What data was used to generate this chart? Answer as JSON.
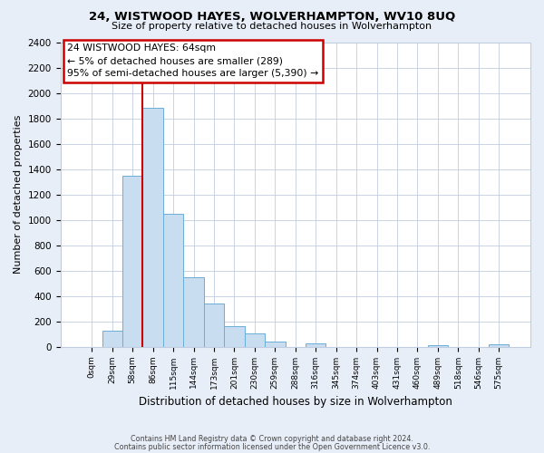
{
  "title": "24, WISTWOOD HAYES, WOLVERHAMPTON, WV10 8UQ",
  "subtitle": "Size of property relative to detached houses in Wolverhampton",
  "xlabel": "Distribution of detached houses by size in Wolverhampton",
  "ylabel": "Number of detached properties",
  "bin_labels": [
    "0sqm",
    "29sqm",
    "58sqm",
    "86sqm",
    "115sqm",
    "144sqm",
    "173sqm",
    "201sqm",
    "230sqm",
    "259sqm",
    "288sqm",
    "316sqm",
    "345sqm",
    "374sqm",
    "403sqm",
    "431sqm",
    "460sqm",
    "489sqm",
    "518sqm",
    "546sqm",
    "575sqm"
  ],
  "bar_values": [
    0,
    125,
    1350,
    1880,
    1050,
    550,
    340,
    160,
    105,
    40,
    0,
    25,
    0,
    0,
    0,
    0,
    0,
    10,
    0,
    0,
    15
  ],
  "bar_color": "#c8ddf0",
  "bar_edge_color": "#6aaed6",
  "red_line_bin_index": 2,
  "ylim": [
    0,
    2400
  ],
  "yticks": [
    0,
    200,
    400,
    600,
    800,
    1000,
    1200,
    1400,
    1600,
    1800,
    2000,
    2200,
    2400
  ],
  "annotation_title": "24 WISTWOOD HAYES: 64sqm",
  "annotation_line1": "← 5% of detached houses are smaller (289)",
  "annotation_line2": "95% of semi-detached houses are larger (5,390) →",
  "footer1": "Contains HM Land Registry data © Crown copyright and database right 2024.",
  "footer2": "Contains public sector information licensed under the Open Government Licence v3.0.",
  "bg_color": "#e8eef8",
  "plot_bg_color": "#ffffff",
  "grid_color": "#c0cce0"
}
